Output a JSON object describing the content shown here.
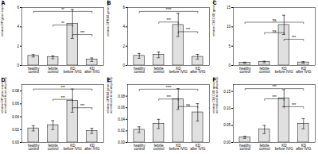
{
  "chart_data": [
    {
      "type": "bar",
      "title": "A",
      "ylabel": "relative HP gene expression",
      "categories": [
        "healthy\ncontrol",
        "febrile\ncontrol",
        "KD\nbefore IVIG",
        "KD\nafter IVIG"
      ],
      "values": [
        1.0,
        0.85,
        4.3,
        0.6
      ],
      "errors": [
        0.12,
        0.15,
        1.5,
        0.18
      ],
      "color": "#e0e0e0",
      "ylim": [
        0,
        6
      ],
      "yticks": [
        0,
        2,
        4,
        6
      ],
      "annotations": [
        {
          "x1": "healthy\ncontrol",
          "x2": "KD\nafter IVIG",
          "y": 5.6,
          "text": "**"
        },
        {
          "x1": "febrile\ncontrol",
          "x2": "KD\nbefore IVIG",
          "y": 4.2,
          "text": "**"
        },
        {
          "x1": "KD\nbefore IVIG",
          "x2": "KD\nafter IVIG",
          "y": 3.2,
          "text": "***"
        }
      ]
    },
    {
      "type": "bar",
      "title": "B",
      "ylabel": "relative GPR84 gene expression",
      "categories": [
        "healthy\ncontrol",
        "febrile\ncontrol",
        "KD\nbefore IVIG",
        "KD\nafter IVIG"
      ],
      "values": [
        1.0,
        1.1,
        4.2,
        0.9
      ],
      "errors": [
        0.25,
        0.3,
        1.2,
        0.25
      ],
      "color": "#e0e0e0",
      "ylim": [
        0,
        6
      ],
      "yticks": [
        0,
        2,
        4,
        6
      ],
      "annotations": [
        {
          "x1": "healthy\ncontrol",
          "x2": "KD\nafter IVIG",
          "y": 5.6,
          "text": "****"
        },
        {
          "x1": "febrile\ncontrol",
          "x2": "KD\nbefore IVIG",
          "y": 4.5,
          "text": "***"
        },
        {
          "x1": "KD\nbefore IVIG",
          "x2": "KD\nafter IVIG",
          "y": 3.5,
          "text": "***"
        }
      ]
    },
    {
      "type": "bar",
      "title": "C",
      "ylabel": "relative CLEC4D gene expression",
      "categories": [
        "healthy\ncontrol",
        "febrile\ncontrol",
        "KD\nbefore IVIG",
        "KD\nafter IVIG"
      ],
      "values": [
        0.7,
        0.9,
        10.5,
        0.8
      ],
      "errors": [
        0.15,
        0.2,
        2.5,
        0.2
      ],
      "color": "#e0e0e0",
      "ylim": [
        0,
        15
      ],
      "yticks": [
        0,
        5,
        10,
        15
      ],
      "annotations": [
        {
          "x1": "healthy\ncontrol",
          "x2": "KD\nafter IVIG",
          "y": 11.2,
          "text": "ns"
        },
        {
          "x1": "febrile\ncontrol",
          "x2": "KD\nbefore IVIG",
          "y": 8.5,
          "text": "ns"
        },
        {
          "x1": "KD\nbefore IVIG",
          "x2": "KD\nafter IVIG",
          "y": 6.8,
          "text": "***"
        }
      ]
    },
    {
      "type": "bar",
      "title": "D",
      "ylabel": "relative HP gene expression\nnormalized to neutrophil percentage",
      "categories": [
        "healthy\ncontrol",
        "febrile\ncontrol",
        "KD\nbefore IVIG",
        "KD\nafter IVIG"
      ],
      "values": [
        0.022,
        0.027,
        0.065,
        0.018
      ],
      "errors": [
        0.004,
        0.007,
        0.018,
        0.004
      ],
      "color": "#e0e0e0",
      "ylim": [
        0,
        0.09
      ],
      "yticks": [
        {
          "value": 0,
          "label": "0.00"
        },
        0.02,
        0.04,
        0.06,
        0.08
      ],
      "annotations": [
        {
          "x1": "healthy\ncontrol",
          "x2": "KD\nafter IVIG",
          "y": 0.083,
          "text": "***"
        },
        {
          "x1": "febrile\ncontrol",
          "x2": "KD\nbefore IVIG",
          "y": 0.067,
          "text": "***"
        },
        {
          "x1": "KD\nbefore IVIG",
          "x2": "KD\nafter IVIG",
          "y": 0.054,
          "text": "***"
        }
      ]
    },
    {
      "type": "bar",
      "title": "E",
      "ylabel": "relative GPR84 gene expression\nnormalized to neutrophil percentage",
      "categories": [
        "healthy\ncontrol",
        "febrile\ncontrol",
        "KD\nbefore IVIG",
        "KD\nafter IVIG"
      ],
      "values": [
        0.022,
        0.032,
        0.075,
        0.052
      ],
      "errors": [
        0.005,
        0.008,
        0.018,
        0.015
      ],
      "color": "#e0e0e0",
      "ylim": [
        0,
        0.1
      ],
      "yticks": [
        {
          "value": 0,
          "label": "0.00"
        },
        0.02,
        0.04,
        0.06,
        0.08
      ],
      "annotations": [
        {
          "x1": "healthy\ncontrol",
          "x2": "KD\nafter IVIG",
          "y": 0.092,
          "text": "****"
        },
        {
          "x1": "febrile\ncontrol",
          "x2": "KD\nbefore IVIG",
          "y": 0.075,
          "text": "***"
        },
        {
          "x1": "KD\nbefore IVIG",
          "x2": "KD\nafter IVIG",
          "y": 0.062,
          "text": "ns"
        }
      ]
    },
    {
      "type": "bar",
      "title": "F",
      "ylabel": "relative CLEC4D gene expression\nnormalized to neutrophil percentage",
      "categories": [
        "healthy\ncontrol",
        "febrile\ncontrol",
        "KD\nbefore IVIG",
        "KD\nafter IVIG"
      ],
      "values": [
        0.015,
        0.038,
        0.13,
        0.055
      ],
      "errors": [
        0.003,
        0.012,
        0.025,
        0.015
      ],
      "color": "#e0e0e0",
      "ylim": [
        0,
        0.17
      ],
      "yticks": [
        {
          "value": 0,
          "label": "0.00"
        },
        0.05,
        {
          "value": 0.1,
          "label": "0.10"
        },
        0.15
      ],
      "annotations": [
        {
          "x1": "healthy\ncontrol",
          "x2": "KD\nafter IVIG",
          "y": 0.158,
          "text": "***"
        },
        {
          "x1": "febrile\ncontrol",
          "x2": "KD\nbefore IVIG",
          "y": 0.128,
          "text": "***"
        },
        {
          "x1": "KD\nbefore IVIG",
          "x2": "KD\nafter IVIG",
          "y": 0.105,
          "text": "***"
        }
      ]
    }
  ]
}
